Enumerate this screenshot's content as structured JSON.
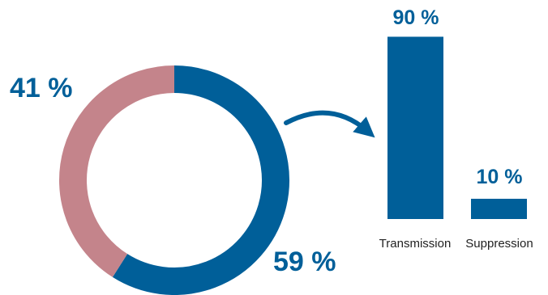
{
  "colors": {
    "primary": "#005f99",
    "secondary": "#c4848b",
    "text_dark": "#222222"
  },
  "chart_data": [
    {
      "type": "pie",
      "variant": "donut",
      "slices": [
        {
          "label": "59 %",
          "value": 59,
          "color": "#005f99"
        },
        {
          "label": "41 %",
          "value": 41,
          "color": "#c4848b"
        }
      ]
    },
    {
      "type": "bar",
      "categories": [
        "Transmission",
        "Suppression"
      ],
      "values": [
        90,
        10
      ],
      "value_labels": [
        "90 %",
        "10 %"
      ],
      "color": "#005f99",
      "ylim": [
        0,
        100
      ]
    }
  ],
  "connector": {
    "icon": "curved-arrow-icon",
    "meaning": "59 % slice breaks down into bar chart"
  }
}
